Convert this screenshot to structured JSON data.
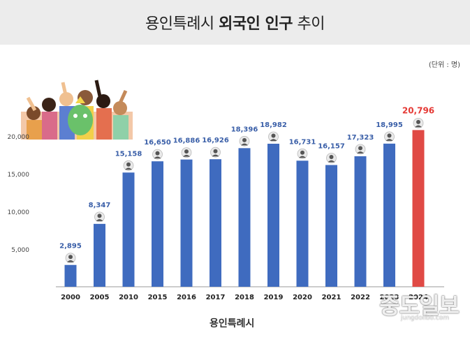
{
  "header": {
    "title_prefix": "용인특례시",
    "title_bold": "외국인 인구",
    "title_suffix": "추이"
  },
  "unit_label": "(단위 : 명)",
  "logo_text": "용인특례시",
  "watermark": {
    "name": "중도일보",
    "url": "jungdoilbo.com"
  },
  "colors": {
    "bar": "#3f6bbf",
    "highlight_bar": "#e04a45",
    "label": "#3a5fa8",
    "highlight_label": "#e53935"
  },
  "chart_data": {
    "type": "bar",
    "title": "용인특례시 외국인 인구 추이",
    "categories": [
      "2000",
      "2005",
      "2010",
      "2015",
      "2016",
      "2017",
      "2018",
      "2019",
      "2020",
      "2021",
      "2022",
      "2023",
      "2024"
    ],
    "values": [
      2895,
      8347,
      15158,
      16650,
      16886,
      16926,
      18396,
      18982,
      16731,
      16157,
      17323,
      18995,
      20796
    ],
    "data_labels": [
      "2,895",
      "8,347",
      "15,158",
      "16,650",
      "16,886",
      "16,926",
      "18,396",
      "18,982",
      "16,731",
      "16,157",
      "17,323",
      "18,995",
      "20,796"
    ],
    "highlight_index": 12,
    "yticks": [
      5000,
      10000,
      15000,
      20000
    ],
    "ytick_labels": [
      "5,000",
      "10,000",
      "15,000",
      "20,000"
    ],
    "ylim": [
      0,
      20000
    ],
    "grid": false,
    "xlabel": "",
    "ylabel": ""
  }
}
